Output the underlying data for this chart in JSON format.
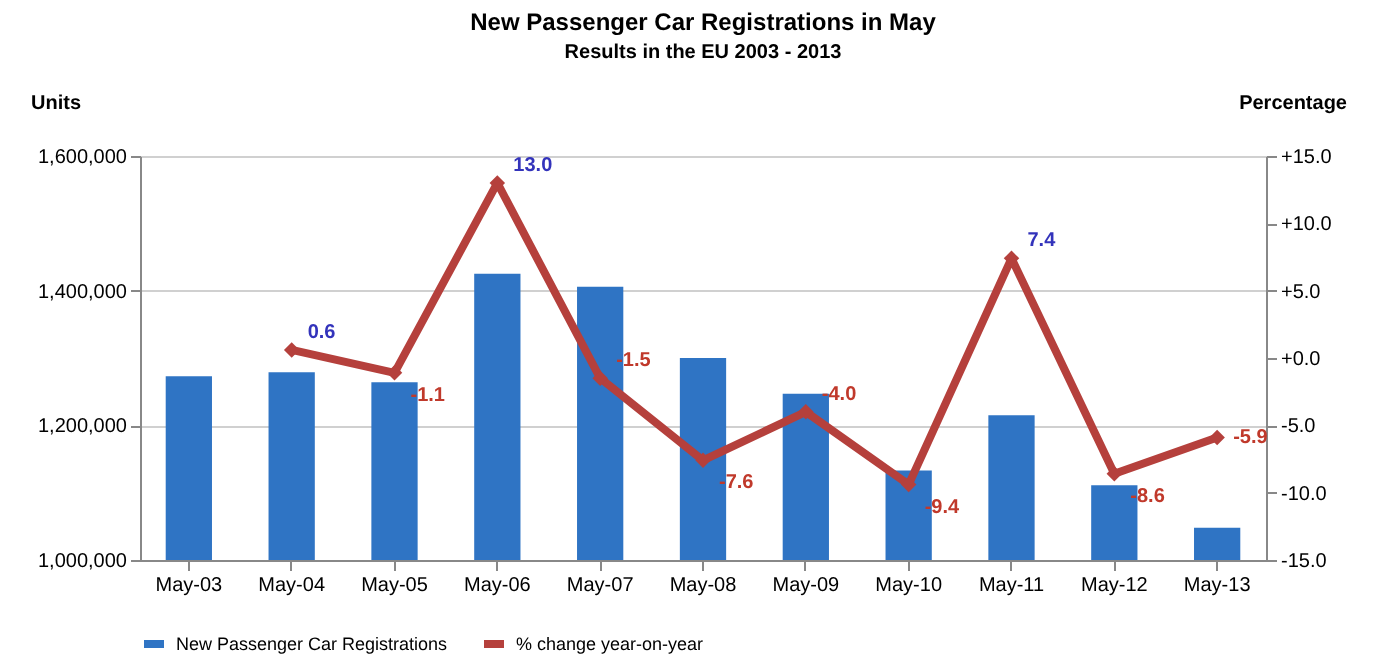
{
  "chart_data": {
    "type": "bar",
    "title": "New Passenger Car Registrations in May",
    "subtitle": "Results in the EU 2003 - 2013",
    "ylabel": "Units",
    "y2label": "Percentage",
    "categories": [
      "May-03",
      "May-04",
      "May-05",
      "May-06",
      "May-07",
      "May-08",
      "May-09",
      "May-10",
      "May-11",
      "May-12",
      "May-13"
    ],
    "series": [
      {
        "name": "New Passenger Car Registrations",
        "color": "#2f74c4",
        "values": [
          1273000,
          1279000,
          1264000,
          1425000,
          1406000,
          1300000,
          1247000,
          1133000,
          1215000,
          1111000,
          1048000
        ]
      },
      {
        "name": "% change year-on-year",
        "type": "line",
        "axis": "y2",
        "color": "#b5403c",
        "marker": "diamond",
        "values": [
          null,
          0.6,
          -1.1,
          13.0,
          -1.5,
          -7.6,
          -4.0,
          -9.4,
          7.4,
          -8.6,
          -5.9
        ],
        "value_labels": [
          null,
          "0.6",
          "-1.1",
          "13.0",
          "-1.5",
          "-7.6",
          "-4.0",
          "-9.4",
          "7.4",
          "-8.6",
          "-5.9"
        ]
      }
    ],
    "ylim": [
      1000000,
      1600000
    ],
    "yticks": [
      {
        "value": 1000000,
        "label": "1,000,000"
      },
      {
        "value": 1200000,
        "label": "1,200,000"
      },
      {
        "value": 1400000,
        "label": "1,400,000"
      },
      {
        "value": 1600000,
        "label": "1,600,000"
      }
    ],
    "y2lim": [
      -15,
      15
    ],
    "y2ticks": [
      {
        "value": 15,
        "label": "+15.0"
      },
      {
        "value": 10,
        "label": "+10.0"
      },
      {
        "value": 5,
        "label": "+5.0"
      },
      {
        "value": 0,
        "label": "+0.0"
      },
      {
        "value": -5,
        "label": "-5.0"
      },
      {
        "value": -10,
        "label": "-10.0"
      },
      {
        "value": -15,
        "label": "-15.0"
      }
    ],
    "grid": "y",
    "legend": "bottom"
  }
}
